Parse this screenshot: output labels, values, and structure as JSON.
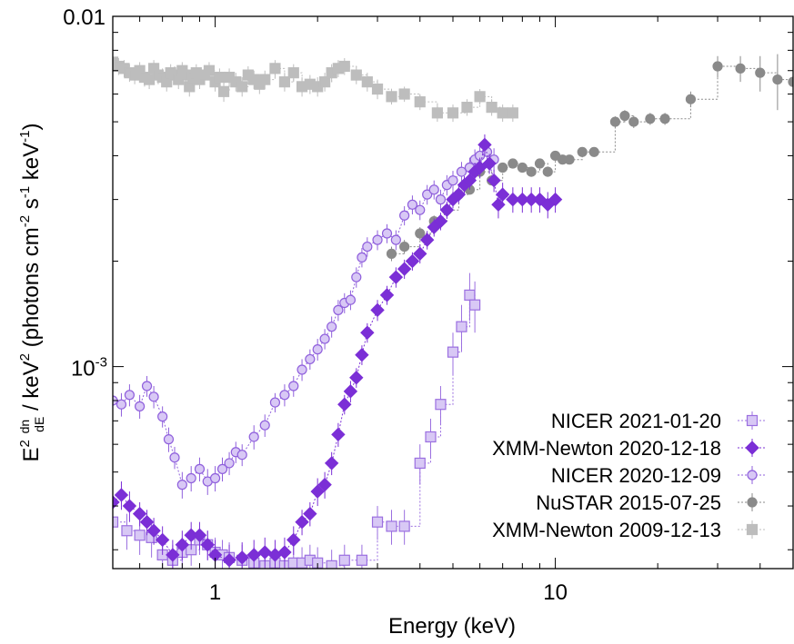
{
  "chart_data": {
    "type": "scatter",
    "xlabel": "Energy (keV)",
    "ylabel": {
      "e_base": "E",
      "e_sup": "2",
      "frac_num": "dn",
      "frac_den": "dE",
      "mid": "/ keV",
      "mid_sup": "2",
      "units_open": "(photons cm",
      "cm_sup": "-2",
      "s_part": "s",
      "s_sup": "-1",
      "kev_part": "keV",
      "kev_sup": "-1",
      "close": ")"
    },
    "xscale": "log",
    "yscale": "log",
    "xlim": [
      0.5,
      50
    ],
    "ylim": [
      0.000265,
      0.01
    ],
    "x_major_ticks": [
      {
        "value": 1,
        "label": "1"
      },
      {
        "value": 10,
        "label": "10"
      }
    ],
    "y_major_ticks": [
      {
        "value": 0.01,
        "label_base": "0.01",
        "label_sup": ""
      },
      {
        "value": 0.001,
        "label_base": "10",
        "label_sup": "-3"
      }
    ],
    "grid": false,
    "legend_position": "bottom-right",
    "series": [
      {
        "name": "NICER 2021-01-20",
        "marker": "square-open",
        "color": "#9b6fe0",
        "fill": "#d8c8f5",
        "line": "dotted-step",
        "x": [
          0.5,
          0.55,
          0.6,
          0.65,
          0.7,
          0.75,
          0.8,
          0.85,
          0.9,
          0.95,
          1.0,
          1.05,
          1.1,
          1.2,
          1.3,
          1.4,
          1.5,
          1.6,
          1.7,
          1.8,
          1.9,
          2.0,
          2.2,
          2.4,
          2.7,
          3.0,
          3.3,
          3.6,
          4.0,
          4.3,
          4.6,
          5.0,
          5.3,
          5.6,
          5.8
        ],
        "y": [
          0.00036,
          0.00034,
          0.00033,
          0.000325,
          0.00029,
          0.00028,
          0.000295,
          0.0003,
          0.00032,
          0.00031,
          0.000295,
          0.00029,
          0.000285,
          0.00028,
          0.000275,
          0.00027,
          0.000275,
          0.00027,
          0.000275,
          0.000275,
          0.00028,
          0.000275,
          0.00027,
          0.00028,
          0.00028,
          0.00036,
          0.00035,
          0.00035,
          0.00053,
          0.00063,
          0.00078,
          0.0011,
          0.0013,
          0.0016,
          0.0015
        ],
        "err": [
          4e-05,
          4e-05,
          4e-05,
          4e-05,
          3e-05,
          3e-05,
          3e-05,
          3e-05,
          3e-05,
          3e-05,
          3e-05,
          3e-05,
          3e-05,
          3e-05,
          3e-05,
          3e-05,
          3e-05,
          3e-05,
          3e-05,
          3e-05,
          3e-05,
          3e-05,
          3e-05,
          3e-05,
          3e-05,
          4e-05,
          4e-05,
          4e-05,
          7e-05,
          8e-05,
          0.0001,
          0.00015,
          0.0002,
          0.00025,
          0.00025
        ]
      },
      {
        "name": "XMM-Newton 2020-12-18",
        "marker": "diamond-filled",
        "color": "#7b2fd6",
        "fill": "#7b2fd6",
        "line": "dotted",
        "x": [
          0.5,
          0.53,
          0.56,
          0.6,
          0.63,
          0.66,
          0.7,
          0.75,
          0.8,
          0.85,
          0.9,
          0.95,
          1.0,
          1.1,
          1.2,
          1.3,
          1.4,
          1.5,
          1.6,
          1.7,
          1.8,
          1.9,
          2.0,
          2.1,
          2.2,
          2.3,
          2.4,
          2.5,
          2.6,
          2.7,
          2.8,
          3.0,
          3.2,
          3.4,
          3.6,
          3.8,
          4.0,
          4.2,
          4.4,
          4.6,
          4.8,
          5.0,
          5.2,
          5.4,
          5.6,
          5.8,
          6.0,
          6.2,
          6.4,
          6.6,
          6.8,
          7.0,
          7.5,
          8.0,
          8.5,
          9.0,
          9.5,
          10.0
        ],
        "y": [
          0.00041,
          0.00043,
          0.0004,
          0.00038,
          0.00036,
          0.00034,
          0.00032,
          0.00029,
          0.00031,
          0.00033,
          0.00033,
          0.00031,
          0.00029,
          0.00028,
          0.000285,
          0.00029,
          0.000295,
          0.00029,
          0.000295,
          0.00032,
          0.00036,
          0.00038,
          0.00044,
          0.00046,
          0.00053,
          0.00064,
          0.00078,
          0.00085,
          0.00093,
          0.00108,
          0.00125,
          0.00145,
          0.0016,
          0.0018,
          0.0019,
          0.002,
          0.0021,
          0.0023,
          0.0025,
          0.0026,
          0.0028,
          0.003,
          0.0031,
          0.0033,
          0.0034,
          0.0036,
          0.0037,
          0.0043,
          0.0038,
          0.0034,
          0.0029,
          0.0031,
          0.003,
          0.003,
          0.003,
          0.003,
          0.0029,
          0.003
        ],
        "err": [
          4e-05,
          4e-05,
          4e-05,
          3e-05,
          3e-05,
          3e-05,
          3e-05,
          3e-05,
          3e-05,
          3e-05,
          3e-05,
          3e-05,
          3e-05,
          3e-05,
          3e-05,
          3e-05,
          3e-05,
          3e-05,
          3e-05,
          3e-05,
          3e-05,
          3e-05,
          4e-05,
          4e-05,
          4e-05,
          5e-05,
          5e-05,
          6e-05,
          6e-05,
          7e-05,
          8e-05,
          0.0001,
          0.0001,
          0.00012,
          0.00012,
          0.00012,
          0.00013,
          0.00014,
          0.00015,
          0.00015,
          0.00016,
          0.00017,
          0.00018,
          0.0002,
          0.0002,
          0.00022,
          0.00025,
          0.0003,
          0.00025,
          0.00025,
          0.00025,
          0.00025,
          0.00025,
          0.00025,
          0.00025,
          0.00025,
          0.00025,
          0.00025
        ]
      },
      {
        "name": "NICER 2020-12-09",
        "marker": "circle-open",
        "color": "#8f5fdc",
        "fill": "#d8c8f5",
        "line": "dotted",
        "x": [
          0.5,
          0.53,
          0.56,
          0.6,
          0.63,
          0.66,
          0.7,
          0.73,
          0.76,
          0.8,
          0.85,
          0.9,
          0.95,
          1.0,
          1.05,
          1.1,
          1.15,
          1.2,
          1.3,
          1.4,
          1.5,
          1.6,
          1.7,
          1.8,
          1.9,
          2.0,
          2.1,
          2.2,
          2.3,
          2.4,
          2.5,
          2.6,
          2.7,
          2.8,
          3.0,
          3.2,
          3.4,
          3.6,
          3.8,
          4.0,
          4.2,
          4.4,
          4.6,
          4.8,
          5.0,
          5.3,
          5.6,
          5.8,
          6.0,
          6.3,
          6.6
        ],
        "y": [
          0.0008,
          0.00078,
          0.00083,
          0.00077,
          0.00088,
          0.00082,
          0.00072,
          0.00062,
          0.00055,
          0.00046,
          0.00048,
          0.00051,
          0.00047,
          0.00048,
          0.00051,
          0.00053,
          0.00057,
          0.00056,
          0.00063,
          0.00068,
          0.00079,
          0.00083,
          0.00088,
          0.00098,
          0.00105,
          0.00112,
          0.0012,
          0.0013,
          0.00145,
          0.00152,
          0.00155,
          0.0018,
          0.00205,
          0.0022,
          0.0023,
          0.0024,
          0.0023,
          0.0027,
          0.0029,
          0.0028,
          0.0031,
          0.0032,
          0.003,
          0.0033,
          0.0034,
          0.0036,
          0.0037,
          0.0039,
          0.004,
          0.0041,
          0.0039
        ],
        "err": [
          6e-05,
          6e-05,
          6e-05,
          6e-05,
          6e-05,
          6e-05,
          5e-05,
          5e-05,
          4e-05,
          4e-05,
          4e-05,
          4e-05,
          4e-05,
          4e-05,
          4e-05,
          4e-05,
          4e-05,
          4e-05,
          5e-05,
          5e-05,
          5e-05,
          6e-05,
          6e-05,
          7e-05,
          7e-05,
          8e-05,
          8e-05,
          9e-05,
          0.0001,
          0.0001,
          0.0001,
          0.00012,
          0.00013,
          0.00014,
          0.00015,
          0.00015,
          0.00015,
          0.00017,
          0.00018,
          0.00018,
          0.0002,
          0.0002,
          0.0002,
          0.00022,
          0.00022,
          0.00024,
          0.00025,
          0.00027,
          0.0003,
          0.0003,
          0.0003
        ]
      },
      {
        "name": "NuSTAR 2015-07-25",
        "marker": "circle-filled",
        "color": "#8a8a8a",
        "fill": "#8a8a8a",
        "line": "dotted-step",
        "x": [
          3.3,
          3.6,
          4.0,
          4.4,
          4.8,
          5.2,
          5.6,
          6.0,
          6.5,
          7.0,
          7.5,
          8.0,
          8.5,
          9.0,
          9.5,
          10.0,
          10.5,
          11.0,
          12.0,
          13.0,
          15.0,
          16.0,
          17.0,
          19.0,
          21.0,
          25.0,
          30.0,
          35.0,
          40.0,
          45.0,
          50.0
        ],
        "y": [
          0.0021,
          0.0022,
          0.0024,
          0.0026,
          0.0028,
          0.0031,
          0.0032,
          0.0036,
          0.0034,
          0.0037,
          0.0038,
          0.0037,
          0.0036,
          0.0038,
          0.0036,
          0.004,
          0.0039,
          0.0039,
          0.0041,
          0.0041,
          0.005,
          0.0052,
          0.005,
          0.0051,
          0.0051,
          0.0058,
          0.0072,
          0.0071,
          0.0069,
          0.0066,
          0.0065
        ],
        "err": [
          0.0001,
          0.0001,
          0.0001,
          0.0001,
          0.0001,
          0.0001,
          0.0001,
          0.0001,
          0.0001,
          0.0001,
          0.0001,
          0.0001,
          0.0001,
          0.0001,
          0.0001,
          0.0001,
          0.00012,
          0.00012,
          0.00013,
          0.00013,
          0.00018,
          0.0002,
          0.0002,
          0.0002,
          0.0002,
          0.0003,
          0.0005,
          0.0006,
          0.0008,
          0.0012,
          0.0025
        ]
      },
      {
        "name": "XMM-Newton 2009-12-13",
        "marker": "square-filled",
        "color": "#bdbdbd",
        "fill": "#bdbdbd",
        "line": "dotted-step",
        "x": [
          0.5,
          0.52,
          0.54,
          0.56,
          0.58,
          0.6,
          0.62,
          0.64,
          0.66,
          0.68,
          0.7,
          0.72,
          0.74,
          0.76,
          0.78,
          0.8,
          0.82,
          0.84,
          0.86,
          0.88,
          0.9,
          0.93,
          0.96,
          1.0,
          1.03,
          1.06,
          1.1,
          1.15,
          1.2,
          1.25,
          1.3,
          1.35,
          1.4,
          1.5,
          1.6,
          1.7,
          1.8,
          1.9,
          2.0,
          2.1,
          2.2,
          2.3,
          2.4,
          2.6,
          2.8,
          3.0,
          3.3,
          3.6,
          4.0,
          4.5,
          5.0,
          5.5,
          6.0,
          6.5,
          7.0,
          7.5
        ],
        "y": [
          0.0074,
          0.0072,
          0.0071,
          0.0069,
          0.0068,
          0.007,
          0.0067,
          0.0066,
          0.0071,
          0.0068,
          0.0067,
          0.0065,
          0.0069,
          0.0068,
          0.0066,
          0.007,
          0.0068,
          0.0063,
          0.0067,
          0.0069,
          0.0066,
          0.0068,
          0.007,
          0.0065,
          0.0067,
          0.0061,
          0.0067,
          0.0065,
          0.0063,
          0.0068,
          0.0066,
          0.0064,
          0.0066,
          0.0071,
          0.0065,
          0.0069,
          0.0063,
          0.0064,
          0.0063,
          0.0065,
          0.0069,
          0.0071,
          0.0072,
          0.0068,
          0.0065,
          0.0062,
          0.0059,
          0.006,
          0.0057,
          0.0053,
          0.0053,
          0.0055,
          0.0059,
          0.0055,
          0.0053,
          0.0053
        ],
        "err": [
          0.0004,
          0.0004,
          0.0004,
          0.0004,
          0.0004,
          0.0004,
          0.0004,
          0.0004,
          0.0004,
          0.0004,
          0.0004,
          0.0004,
          0.0004,
          0.0004,
          0.0004,
          0.0004,
          0.0004,
          0.0004,
          0.0004,
          0.0004,
          0.0004,
          0.0004,
          0.0004,
          0.0004,
          0.0004,
          0.0004,
          0.0004,
          0.0004,
          0.0004,
          0.0004,
          0.0004,
          0.0004,
          0.0004,
          0.0004,
          0.0004,
          0.0004,
          0.0004,
          0.0004,
          0.0004,
          0.0004,
          0.0004,
          0.0004,
          0.0004,
          0.0004,
          0.0004,
          0.0004,
          0.0003,
          0.0003,
          0.0003,
          0.0003,
          0.0003,
          0.0003,
          0.0003,
          0.0003,
          0.0003,
          0.0003
        ]
      }
    ]
  }
}
